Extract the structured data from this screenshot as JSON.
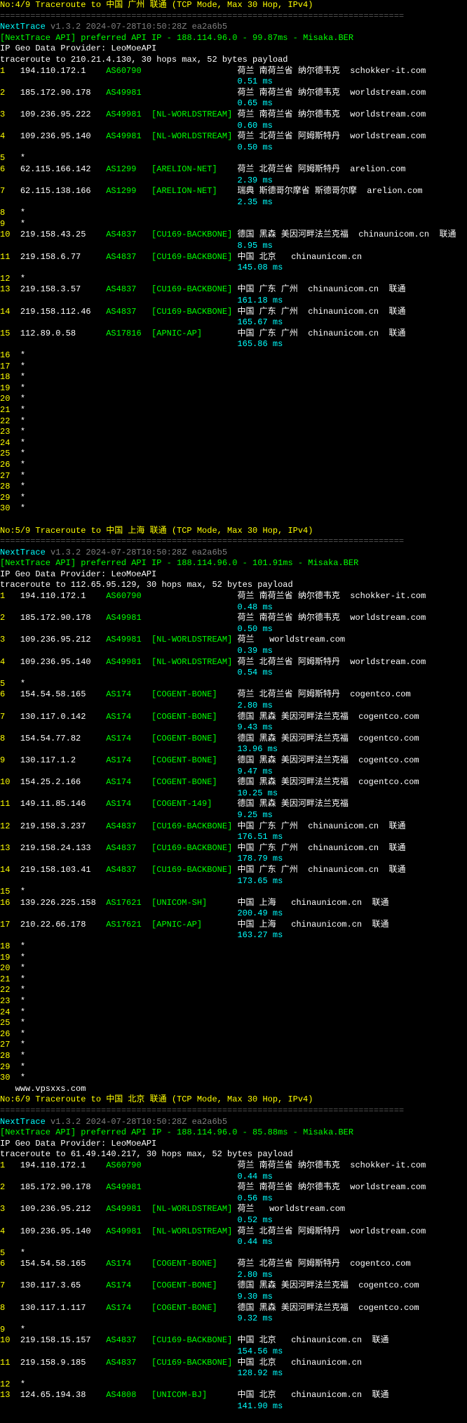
{
  "traces": [
    {
      "header": "No:4/9 Traceroute to 中国 广州 联通 (TCP Mode, Max 30 Hop, IPv4)",
      "nexttrace": "NextTrace",
      "version": "v1.3.2 2024-07-28T10:50:28Z ea2a6b5",
      "api_line": "[NextTrace API] preferred API IP - 188.114.96.0 - 99.87ms - Misaka.BER",
      "geo_provider": "IP Geo Data Provider: LeoMoeAPI",
      "trace_target": "traceroute to 210.21.4.130, 30 hops max, 52 bytes payload",
      "hops": [
        {
          "n": "1",
          "ip": "194.110.172.1",
          "asn": "AS60790",
          "bracket": "",
          "loc": "荷兰 南荷兰省 纳尔德韦克  schokker-it.com",
          "ms": "0.51 ms",
          "color_n": "yellow"
        },
        {
          "n": "2",
          "ip": "185.172.90.178",
          "asn": "AS49981",
          "bracket": "",
          "loc": "荷兰 南荷兰省 纳尔德韦克  worldstream.com",
          "ms": "0.65 ms",
          "color_n": "yellow"
        },
        {
          "n": "3",
          "ip": "109.236.95.222",
          "asn": "AS49981",
          "bracket": "[NL-WORLDSTREAM]",
          "loc": "荷兰 南荷兰省 纳尔德韦克  worldstream.com",
          "ms": "0.60 ms",
          "color_n": "yellow"
        },
        {
          "n": "4",
          "ip": "109.236.95.140",
          "asn": "AS49981",
          "bracket": "[NL-WORLDSTREAM]",
          "loc": "荷兰 北荷兰省 阿姆斯特丹  worldstream.com",
          "ms": "0.50 ms",
          "color_n": "yellow"
        },
        {
          "n": "5",
          "ip": "*",
          "asn": "",
          "bracket": "",
          "loc": "",
          "ms": "",
          "color_n": "yellow",
          "star": true
        },
        {
          "n": "6",
          "ip": "62.115.166.142",
          "asn": "AS1299",
          "bracket": "[ARELION-NET]",
          "loc": "荷兰 北荷兰省 阿姆斯特丹  arelion.com",
          "ms": "2.39 ms",
          "color_n": "yellow"
        },
        {
          "n": "7",
          "ip": "62.115.138.166",
          "asn": "AS1299",
          "bracket": "[ARELION-NET]",
          "loc": "瑞典 斯德哥尔摩省 斯德哥尔摩  arelion.com",
          "ms": "2.35 ms",
          "color_n": "yellow"
        },
        {
          "n": "8",
          "ip": "*",
          "asn": "",
          "bracket": "",
          "loc": "",
          "ms": "",
          "color_n": "yellow",
          "star": true
        },
        {
          "n": "9",
          "ip": "*",
          "asn": "",
          "bracket": "",
          "loc": "",
          "ms": "",
          "color_n": "yellow",
          "star": true
        },
        {
          "n": "10",
          "ip": "219.158.43.25",
          "asn": "AS4837",
          "bracket": "[CU169-BACKBONE]",
          "loc": "德国 黑森 美因河畔法兰克福  chinaunicom.cn  联通",
          "ms": "8.95 ms",
          "color_n": "yellow"
        },
        {
          "n": "11",
          "ip": "219.158.6.77",
          "asn": "AS4837",
          "bracket": "[CU169-BACKBONE]",
          "loc": "中国 北京   chinaunicom.cn",
          "ms": "145.08 ms",
          "color_n": "yellow"
        },
        {
          "n": "12",
          "ip": "*",
          "asn": "",
          "bracket": "",
          "loc": "",
          "ms": "",
          "color_n": "yellow",
          "star": true
        },
        {
          "n": "13",
          "ip": "219.158.3.57",
          "asn": "AS4837",
          "bracket": "[CU169-BACKBONE]",
          "loc": "中国 广东 广州  chinaunicom.cn  联通",
          "ms": "161.18 ms",
          "color_n": "yellow"
        },
        {
          "n": "14",
          "ip": "219.158.112.46",
          "asn": "AS4837",
          "bracket": "[CU169-BACKBONE]",
          "loc": "中国 广东 广州  chinaunicom.cn  联通",
          "ms": "165.67 ms",
          "color_n": "yellow"
        },
        {
          "n": "15",
          "ip": "112.89.0.58",
          "asn": "AS17816",
          "bracket": "[APNIC-AP]",
          "loc": "中国 广东 广州  chinaunicom.cn  联通",
          "ms": "165.86 ms",
          "color_n": "yellow"
        },
        {
          "n": "16",
          "ip": "*",
          "star": true,
          "color_n": "yellow"
        },
        {
          "n": "17",
          "ip": "*",
          "star": true,
          "color_n": "yellow"
        },
        {
          "n": "18",
          "ip": "*",
          "star": true,
          "color_n": "yellow"
        },
        {
          "n": "19",
          "ip": "*",
          "star": true,
          "color_n": "yellow"
        },
        {
          "n": "20",
          "ip": "*",
          "star": true,
          "color_n": "yellow"
        },
        {
          "n": "21",
          "ip": "*",
          "star": true,
          "color_n": "yellow"
        },
        {
          "n": "22",
          "ip": "*",
          "star": true,
          "color_n": "yellow"
        },
        {
          "n": "23",
          "ip": "*",
          "star": true,
          "color_n": "yellow"
        },
        {
          "n": "24",
          "ip": "*",
          "star": true,
          "color_n": "yellow"
        },
        {
          "n": "25",
          "ip": "*",
          "star": true,
          "color_n": "yellow"
        },
        {
          "n": "26",
          "ip": "*",
          "star": true,
          "color_n": "yellow"
        },
        {
          "n": "27",
          "ip": "*",
          "star": true,
          "color_n": "yellow"
        },
        {
          "n": "28",
          "ip": "*",
          "star": true,
          "color_n": "yellow"
        },
        {
          "n": "29",
          "ip": "*",
          "star": true,
          "color_n": "yellow"
        },
        {
          "n": "30",
          "ip": "*",
          "star": true,
          "color_n": "yellow"
        }
      ]
    },
    {
      "header": "No:5/9 Traceroute to 中国 上海 联通 (TCP Mode, Max 30 Hop, IPv4)",
      "nexttrace": "NextTrace",
      "version": "v1.3.2 2024-07-28T10:50:28Z ea2a6b5",
      "api_line": "[NextTrace API] preferred API IP - 188.114.96.0 - 101.91ms - Misaka.BER",
      "geo_provider": "IP Geo Data Provider: LeoMoeAPI",
      "trace_target": "traceroute to 112.65.95.129, 30 hops max, 52 bytes payload",
      "hops": [
        {
          "n": "1",
          "ip": "194.110.172.1",
          "asn": "AS60790",
          "bracket": "",
          "loc": "荷兰 南荷兰省 纳尔德韦克  schokker-it.com",
          "ms": "0.48 ms",
          "color_n": "yellow"
        },
        {
          "n": "2",
          "ip": "185.172.90.178",
          "asn": "AS49981",
          "bracket": "",
          "loc": "荷兰 南荷兰省 纳尔德韦克  worldstream.com",
          "ms": "0.50 ms",
          "color_n": "yellow"
        },
        {
          "n": "3",
          "ip": "109.236.95.212",
          "asn": "AS49981",
          "bracket": "[NL-WORLDSTREAM]",
          "loc": "荷兰   worldstream.com",
          "ms": "0.39 ms",
          "color_n": "yellow"
        },
        {
          "n": "4",
          "ip": "109.236.95.140",
          "asn": "AS49981",
          "bracket": "[NL-WORLDSTREAM]",
          "loc": "荷兰 北荷兰省 阿姆斯特丹  worldstream.com",
          "ms": "0.54 ms",
          "color_n": "yellow"
        },
        {
          "n": "5",
          "ip": "*",
          "star": true,
          "color_n": "yellow"
        },
        {
          "n": "6",
          "ip": "154.54.58.165",
          "asn": "AS174",
          "bracket": "[COGENT-BONE]",
          "loc": "荷兰 北荷兰省 阿姆斯特丹  cogentco.com",
          "ms": "2.80 ms",
          "color_n": "yellow"
        },
        {
          "n": "7",
          "ip": "130.117.0.142",
          "asn": "AS174",
          "bracket": "[COGENT-BONE]",
          "loc": "德国 黑森 美因河畔法兰克福  cogentco.com",
          "ms": "9.43 ms",
          "color_n": "yellow"
        },
        {
          "n": "8",
          "ip": "154.54.77.82",
          "asn": "AS174",
          "bracket": "[COGENT-BONE]",
          "loc": "德国 黑森 美因河畔法兰克福  cogentco.com",
          "ms": "13.96 ms",
          "color_n": "yellow"
        },
        {
          "n": "9",
          "ip": "130.117.1.2",
          "asn": "AS174",
          "bracket": "[COGENT-BONE]",
          "loc": "德国 黑森 美因河畔法兰克福  cogentco.com",
          "ms": "9.47 ms",
          "color_n": "yellow"
        },
        {
          "n": "10",
          "ip": "154.25.2.166",
          "asn": "AS174",
          "bracket": "[COGENT-BONE]",
          "loc": "德国 黑森 美因河畔法兰克福  cogentco.com",
          "ms": "10.25 ms",
          "color_n": "yellow"
        },
        {
          "n": "11",
          "ip": "149.11.85.146",
          "asn": "AS174",
          "bracket": "[COGENT-149]",
          "loc": "德国 黑森 美因河畔法兰克福",
          "ms": "9.25 ms",
          "color_n": "yellow"
        },
        {
          "n": "12",
          "ip": "219.158.3.237",
          "asn": "AS4837",
          "bracket": "[CU169-BACKBONE]",
          "loc": "中国 广东 广州  chinaunicom.cn  联通",
          "ms": "176.51 ms",
          "color_n": "yellow"
        },
        {
          "n": "13",
          "ip": "219.158.24.133",
          "asn": "AS4837",
          "bracket": "[CU169-BACKBONE]",
          "loc": "中国 广东 广州  chinaunicom.cn  联通",
          "ms": "178.79 ms",
          "color_n": "yellow"
        },
        {
          "n": "14",
          "ip": "219.158.103.41",
          "asn": "AS4837",
          "bracket": "[CU169-BACKBONE]",
          "loc": "中国 广东 广州  chinaunicom.cn  联通",
          "ms": "173.65 ms",
          "color_n": "yellow"
        },
        {
          "n": "15",
          "ip": "*",
          "star": true,
          "color_n": "yellow"
        },
        {
          "n": "16",
          "ip": "139.226.225.158",
          "asn": "AS17621",
          "bracket": "[UNICOM-SH]",
          "loc": "中国 上海   chinaunicom.cn  联通",
          "ms": "200.49 ms",
          "color_n": "yellow"
        },
        {
          "n": "17",
          "ip": "210.22.66.178",
          "asn": "AS17621",
          "bracket": "[APNIC-AP]",
          "loc": "中国 上海   chinaunicom.cn  联通",
          "ms": "163.27 ms",
          "color_n": "yellow"
        },
        {
          "n": "18",
          "ip": "*",
          "star": true,
          "color_n": "yellow"
        },
        {
          "n": "19",
          "ip": "*",
          "star": true,
          "color_n": "yellow"
        },
        {
          "n": "20",
          "ip": "*",
          "star": true,
          "color_n": "yellow"
        },
        {
          "n": "21",
          "ip": "*",
          "star": true,
          "color_n": "yellow"
        },
        {
          "n": "22",
          "ip": "*",
          "star": true,
          "color_n": "yellow"
        },
        {
          "n": "23",
          "ip": "*",
          "star": true,
          "color_n": "yellow"
        },
        {
          "n": "24",
          "ip": "*",
          "star": true,
          "color_n": "yellow"
        },
        {
          "n": "25",
          "ip": "*",
          "star": true,
          "color_n": "yellow"
        },
        {
          "n": "26",
          "ip": "*",
          "star": true,
          "color_n": "yellow"
        },
        {
          "n": "27",
          "ip": "*",
          "star": true,
          "color_n": "yellow"
        },
        {
          "n": "28",
          "ip": "*",
          "star": true,
          "color_n": "yellow"
        },
        {
          "n": "29",
          "ip": "*",
          "star": true,
          "color_n": "yellow"
        },
        {
          "n": "30",
          "ip": "*",
          "star": true,
          "color_n": "yellow"
        }
      ],
      "watermark": "www.vpsxxs.com"
    },
    {
      "header": "No:6/9 Traceroute to 中国 北京 联通 (TCP Mode, Max 30 Hop, IPv4)",
      "nexttrace": "NextTrace",
      "version": "v1.3.2 2024-07-28T10:50:28Z ea2a6b5",
      "api_line": "[NextTrace API] preferred API IP - 188.114.96.0 - 85.88ms - Misaka.BER",
      "geo_provider": "IP Geo Data Provider: LeoMoeAPI",
      "trace_target": "traceroute to 61.49.140.217, 30 hops max, 52 bytes payload",
      "hops": [
        {
          "n": "1",
          "ip": "194.110.172.1",
          "asn": "AS60790",
          "bracket": "",
          "loc": "荷兰 南荷兰省 纳尔德韦克  schokker-it.com",
          "ms": "0.44 ms",
          "color_n": "yellow"
        },
        {
          "n": "2",
          "ip": "185.172.90.178",
          "asn": "AS49981",
          "bracket": "",
          "loc": "荷兰 南荷兰省 纳尔德韦克  worldstream.com",
          "ms": "0.56 ms",
          "color_n": "yellow"
        },
        {
          "n": "3",
          "ip": "109.236.95.212",
          "asn": "AS49981",
          "bracket": "[NL-WORLDSTREAM]",
          "loc": "荷兰   worldstream.com",
          "ms": "0.52 ms",
          "color_n": "yellow"
        },
        {
          "n": "4",
          "ip": "109.236.95.140",
          "asn": "AS49981",
          "bracket": "[NL-WORLDSTREAM]",
          "loc": "荷兰 北荷兰省 阿姆斯特丹  worldstream.com",
          "ms": "0.44 ms",
          "color_n": "yellow"
        },
        {
          "n": "5",
          "ip": "*",
          "star": true,
          "color_n": "yellow"
        },
        {
          "n": "6",
          "ip": "154.54.58.165",
          "asn": "AS174",
          "bracket": "[COGENT-BONE]",
          "loc": "荷兰 北荷兰省 阿姆斯特丹  cogentco.com",
          "ms": "2.80 ms",
          "color_n": "yellow"
        },
        {
          "n": "7",
          "ip": "130.117.3.65",
          "asn": "AS174",
          "bracket": "[COGENT-BONE]",
          "loc": "德国 黑森 美因河畔法兰克福  cogentco.com",
          "ms": "9.30 ms",
          "color_n": "yellow"
        },
        {
          "n": "8",
          "ip": "130.117.1.117",
          "asn": "AS174",
          "bracket": "[COGENT-BONE]",
          "loc": "德国 黑森 美因河畔法兰克福  cogentco.com",
          "ms": "9.32 ms",
          "color_n": "yellow"
        },
        {
          "n": "9",
          "ip": "*",
          "star": true,
          "color_n": "yellow"
        },
        {
          "n": "10",
          "ip": "219.158.15.157",
          "asn": "AS4837",
          "bracket": "[CU169-BACKBONE]",
          "loc": "中国 北京   chinaunicom.cn  联通",
          "ms": "154.56 ms",
          "color_n": "yellow"
        },
        {
          "n": "11",
          "ip": "219.158.9.185",
          "asn": "AS4837",
          "bracket": "[CU169-BACKBONE]",
          "loc": "中国 北京   chinaunicom.cn",
          "ms": "128.92 ms",
          "color_n": "yellow"
        },
        {
          "n": "12",
          "ip": "*",
          "star": true,
          "color_n": "yellow"
        },
        {
          "n": "13",
          "ip": "124.65.194.38",
          "asn": "AS4808",
          "bracket": "[UNICOM-BJ]",
          "loc": "中国 北京   chinaunicom.cn  联通",
          "ms": "141.90 ms",
          "color_n": "yellow"
        }
      ]
    }
  ],
  "divider": "================================================================================"
}
